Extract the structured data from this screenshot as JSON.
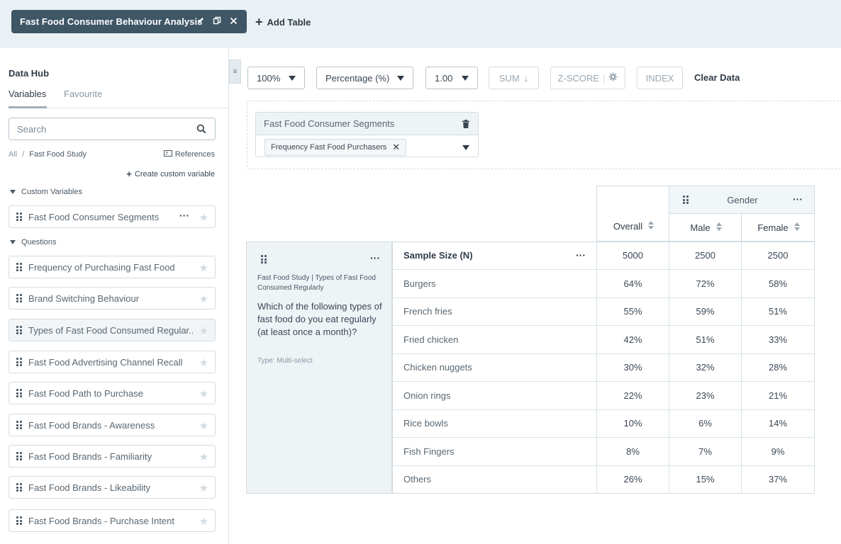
{
  "topbar": {
    "tab_title": "Fast Food Consumer Behaviour Analysis",
    "add_table_label": "Add Table"
  },
  "sidebar": {
    "title": "Data Hub",
    "tabs": [
      "Variables",
      "Favourite"
    ],
    "search_placeholder": "Search",
    "breadcrumb": {
      "root": "All",
      "separator": "/",
      "current": "Fast Food Study"
    },
    "references_label": "References",
    "create_custom_label": "Create custom variable",
    "custom_section_label": "Custom Variables",
    "custom_variables": [
      "Fast Food Consumer Segments"
    ],
    "questions_section_label": "Questions",
    "questions": [
      "Frequency of Purchasing Fast Food",
      "Brand Switching Behaviour",
      "Types of Fast Food Consumed Regular...",
      "Fast Food Advertising Channel Recall",
      "Fast Food Path to Purchase",
      "Fast Food Brands - Awareness",
      "Fast Food Brands - Familiarity",
      "Fast Food Brands - Likeability",
      "Fast Food Brands - Purchase Intent"
    ]
  },
  "toolbar": {
    "zoom": "100%",
    "display_mode": "Percentage (%)",
    "decimal": "1.00",
    "sum_label": "SUM",
    "zscore_label": "Z-SCORE",
    "index_label": "INDEX",
    "clear_label": "Clear Data"
  },
  "filter": {
    "title": "Fast Food Consumer Segments",
    "chip_label": "Frequency Fast Food Purchasers"
  },
  "table": {
    "banner_group": "Gender",
    "columns": [
      "Overall",
      "Male",
      "Female"
    ],
    "question": {
      "source": "Fast Food Study | Types of Fast Food Consumed Regularly",
      "text": "Which of the following types of fast food do you eat regularly (at least once a month)?",
      "type": "Type: Multi-select"
    },
    "sample_label": "Sample Size (N)",
    "sample_values": [
      "5000",
      "2500",
      "2500"
    ],
    "rows": [
      {
        "label": "Burgers",
        "values": [
          "64%",
          "72%",
          "58%"
        ]
      },
      {
        "label": "French fries",
        "values": [
          "55%",
          "59%",
          "51%"
        ]
      },
      {
        "label": "Fried chicken",
        "values": [
          "42%",
          "51%",
          "33%"
        ]
      },
      {
        "label": "Chicken nuggets",
        "values": [
          "30%",
          "32%",
          "28%"
        ]
      },
      {
        "label": "Onion rings",
        "values": [
          "22%",
          "23%",
          "21%"
        ]
      },
      {
        "label": "Rice bowls",
        "values": [
          "10%",
          "6%",
          "14%"
        ]
      },
      {
        "label": "Fish Fingers",
        "values": [
          "8%",
          "7%",
          "9%"
        ]
      },
      {
        "label": "Others",
        "values": [
          "26%",
          "15%",
          "37%"
        ]
      }
    ]
  }
}
